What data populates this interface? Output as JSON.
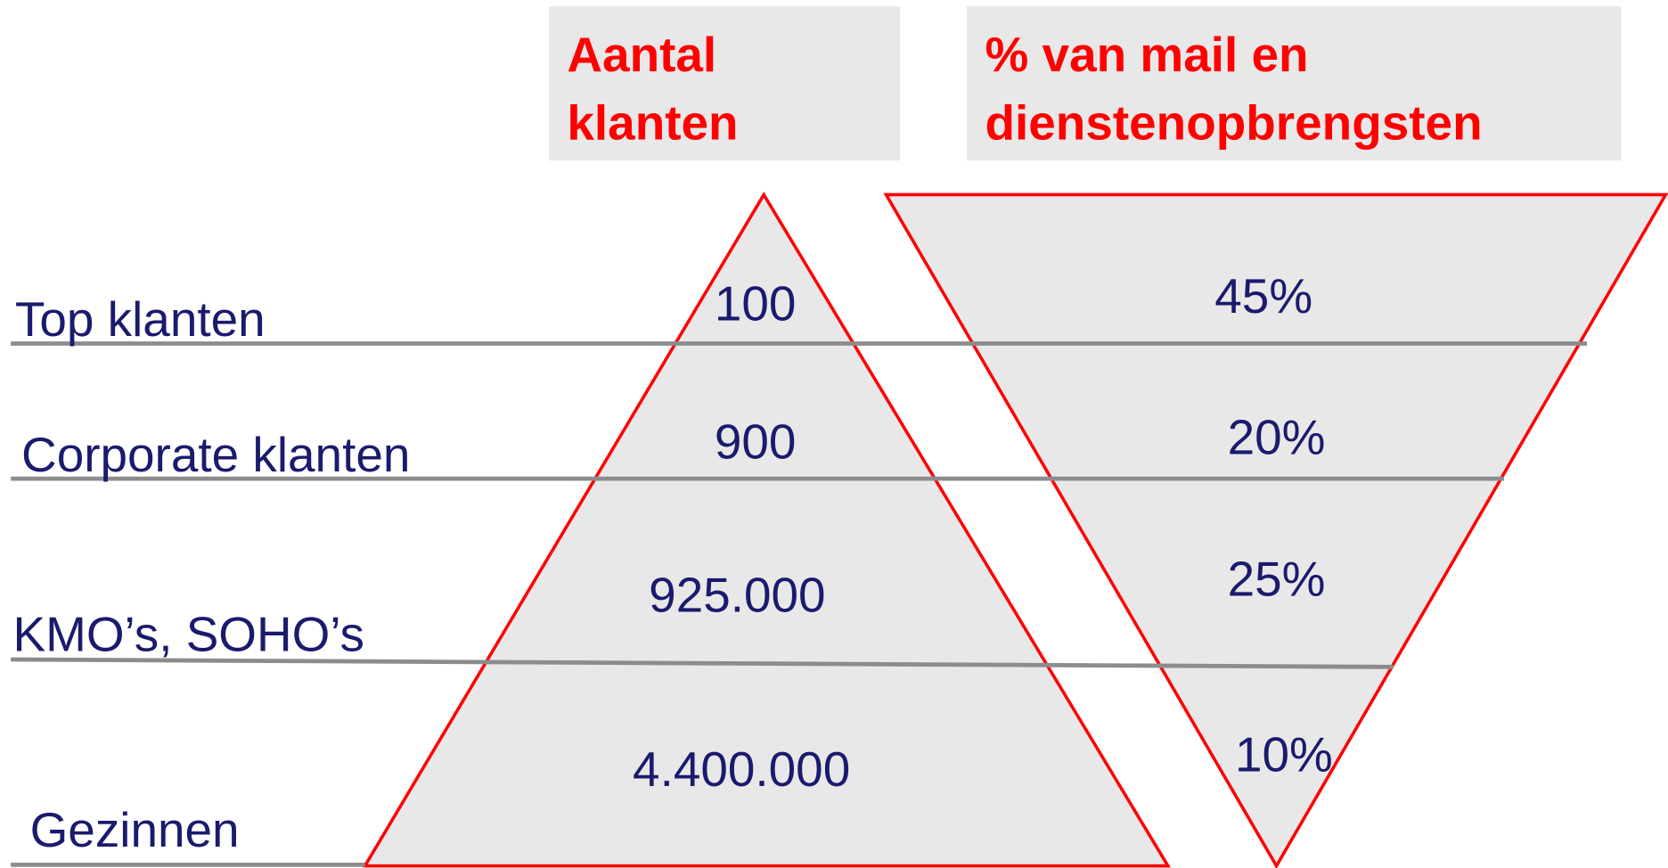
{
  "headers": [
    {
      "lines": [
        "Aantal",
        "klanten"
      ]
    },
    {
      "lines": [
        "% van mail en",
        "dienstenopbrengsten"
      ]
    }
  ],
  "rows": [
    {
      "label": "Top klanten",
      "count": "100",
      "share": "45%"
    },
    {
      "label": "Corporate klanten",
      "count": "900",
      "share": "20%"
    },
    {
      "label": "KMO’s, SOHO’s",
      "count": "925.000",
      "share": "25%"
    },
    {
      "label": "Gezinnen",
      "count": "4.400.000",
      "share": "10%"
    }
  ]
}
